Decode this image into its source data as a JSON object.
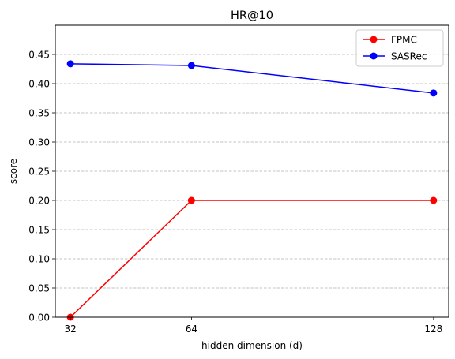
{
  "chart_data": {
    "type": "line",
    "title": "HR@10",
    "xlabel": "hidden dimension (d)",
    "ylabel": "score",
    "x": [
      32,
      64,
      128
    ],
    "xticks": [
      "32",
      "64",
      "128"
    ],
    "xlim": [
      28,
      132
    ],
    "ylim": [
      0,
      0.5
    ],
    "yticks": [
      "0.00",
      "0.05",
      "0.10",
      "0.15",
      "0.20",
      "0.25",
      "0.30",
      "0.35",
      "0.40",
      "0.45"
    ],
    "grid": "horizontal-dashed",
    "legend_position": "top-right",
    "series": [
      {
        "name": "FPMC",
        "color": "#ff0000",
        "values": [
          0.0,
          0.2,
          0.2
        ]
      },
      {
        "name": "SASRec",
        "color": "#0000ff",
        "values": [
          0.434,
          0.431,
          0.384
        ]
      }
    ]
  }
}
